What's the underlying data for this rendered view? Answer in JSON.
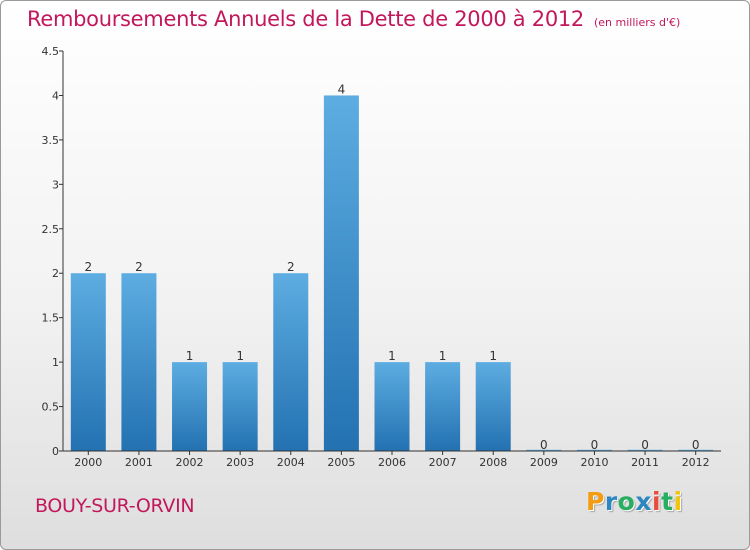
{
  "header": {
    "title": "Remboursements Annuels de la Dette de 2000 à 2012",
    "unit": "(en milliers d'€)"
  },
  "footer": {
    "place": "BOUY-SUR-ORVIN",
    "logo": "Proxiti",
    "logo_colors": [
      "#f39c12",
      "#2e86c1",
      "#27ae60",
      "#2e86c1",
      "#e74c3c",
      "#27ae60",
      "#f1c40f"
    ]
  },
  "chart_data": {
    "type": "bar",
    "title": "Remboursements Annuels de la Dette de 2000 à 2012",
    "subtitle": "(en milliers d'€)",
    "categories": [
      "2000",
      "2001",
      "2002",
      "2003",
      "2004",
      "2005",
      "2006",
      "2007",
      "2008",
      "2009",
      "2010",
      "2011",
      "2012"
    ],
    "values": [
      2,
      2,
      1,
      1,
      2,
      4,
      1,
      1,
      1,
      0,
      0,
      0,
      0
    ],
    "data_labels": [
      "2",
      "2",
      "1",
      "1",
      "2",
      "4",
      "1",
      "1",
      "1",
      "0",
      "0",
      "0",
      "0"
    ],
    "y_ticks": [
      "0",
      "0.5",
      "1",
      "1.5",
      "2",
      "2.5",
      "3",
      "3.5",
      "4",
      "4.5"
    ],
    "ylim": [
      0,
      4.5
    ],
    "xlabel": "",
    "ylabel": "",
    "grid": false,
    "bar_color_top": "#5dade2",
    "bar_color_bottom": "#2371b1",
    "axis_color": "#333333"
  }
}
